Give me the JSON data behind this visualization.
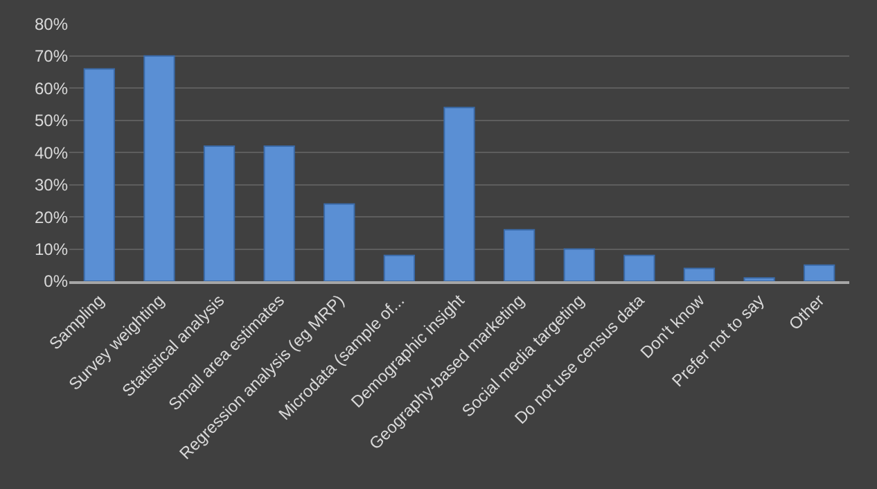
{
  "chart_data": {
    "type": "bar",
    "categories": [
      "Sampling",
      "Survey weighting",
      "Statistical analysis",
      "Small area estimates",
      "Regression analysis (eg MRP)",
      "Microdata (sample of...",
      "Demographic insight",
      "Geography-based marketing",
      "Social media targeting",
      "Do not use census data",
      "Don't know",
      "Prefer not to say",
      "Other"
    ],
    "values": [
      66,
      70,
      42,
      42,
      24,
      8,
      54,
      16,
      10,
      8,
      4,
      1,
      5
    ],
    "color": "#5a8fd4",
    "ylim": [
      0,
      80
    ],
    "yticks": [
      {
        "value": 0,
        "label": "0%"
      },
      {
        "value": 10,
        "label": "10%"
      },
      {
        "value": 20,
        "label": "20%"
      },
      {
        "value": 30,
        "label": "30%"
      },
      {
        "value": 40,
        "label": "40%"
      },
      {
        "value": 50,
        "label": "50%"
      },
      {
        "value": 60,
        "label": "60%"
      },
      {
        "value": 70,
        "label": "70%"
      },
      {
        "value": 80,
        "label": "80%"
      }
    ],
    "grid": "y"
  }
}
